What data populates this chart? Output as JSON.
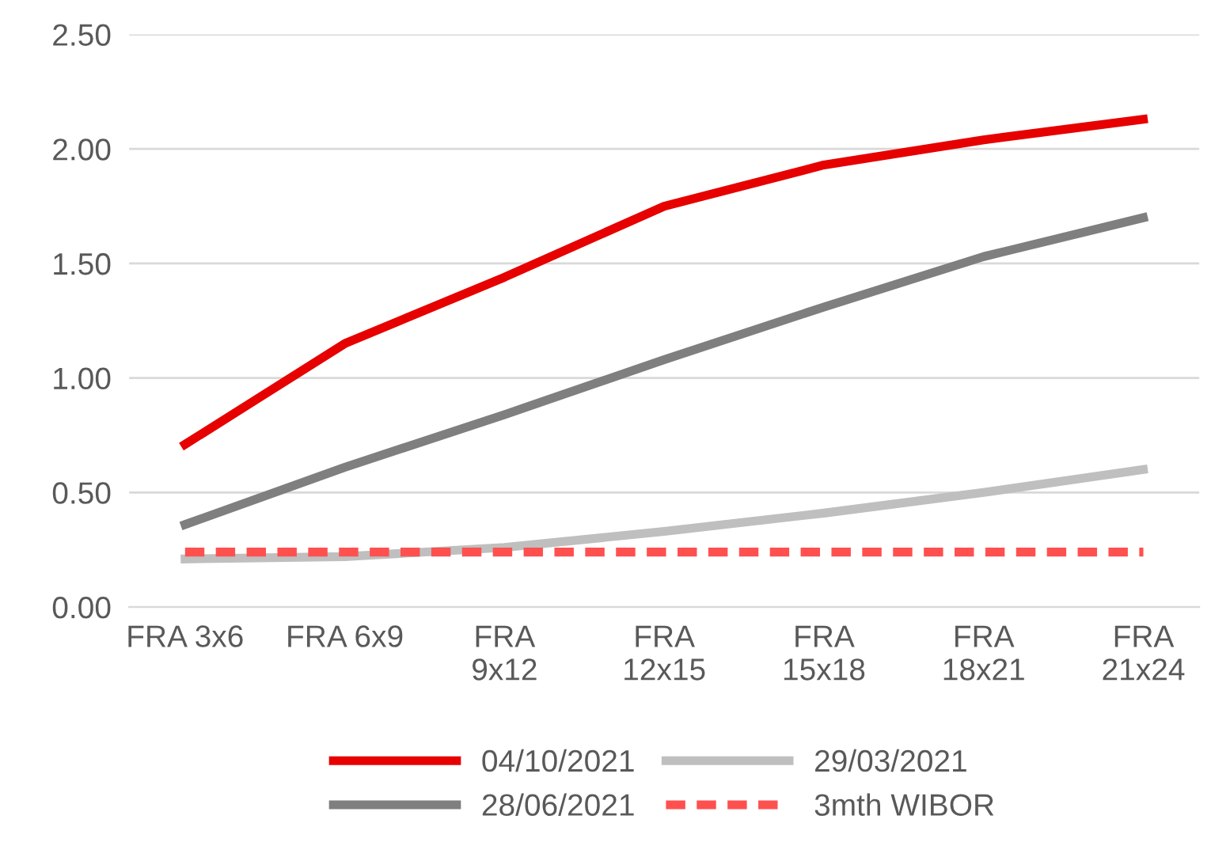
{
  "chart_data": {
    "type": "line",
    "categories": [
      "FRA 3x6",
      "FRA 6x9",
      "FRA\n9x12",
      "FRA\n12x15",
      "FRA\n15x18",
      "FRA\n18x21",
      "FRA\n21x24"
    ],
    "series": [
      {
        "name": "04/10/2021",
        "color": "#e60000",
        "values": [
          0.71,
          1.15,
          1.44,
          1.75,
          1.93,
          2.04,
          2.13
        ]
      },
      {
        "name": "28/06/2021",
        "color": "#7f7f7f",
        "values": [
          0.36,
          0.61,
          0.84,
          1.08,
          1.31,
          1.53,
          1.7
        ]
      },
      {
        "name": "29/03/2021",
        "color": "#bfbfbf",
        "values": [
          0.21,
          0.22,
          0.26,
          0.33,
          0.41,
          0.5,
          0.6
        ]
      },
      {
        "name": "3mth WIBOR",
        "color": "#ff5050",
        "line_style": "dashed",
        "values": [
          0.24,
          0.24,
          0.24,
          0.24,
          0.24,
          0.24,
          0.24
        ]
      }
    ],
    "ylim": [
      0,
      2.5
    ],
    "yticks": [
      {
        "value": 0,
        "label": "0.00"
      },
      {
        "value": 0.5,
        "label": "0.50"
      },
      {
        "value": 1,
        "label": "1.00"
      },
      {
        "value": 1.5,
        "label": "1.50"
      },
      {
        "value": 2,
        "label": "2.00"
      },
      {
        "value": 2.5,
        "label": "2.50"
      }
    ],
    "grid": "y",
    "legend": "bottom",
    "line_style": "solid",
    "marker": "none"
  }
}
